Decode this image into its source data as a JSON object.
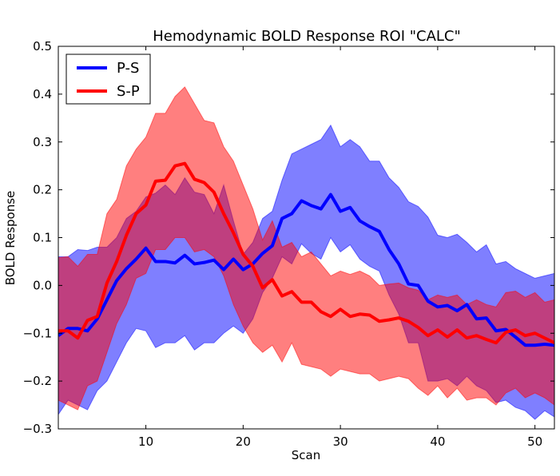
{
  "chart_data": {
    "type": "line",
    "title": "Hemodynamic BOLD Response ROI \"CALC\"",
    "xlabel": "Scan",
    "ylabel": "BOLD Response",
    "xlim": [
      1,
      52
    ],
    "ylim": [
      -0.3,
      0.5
    ],
    "xticks": [
      10,
      20,
      30,
      40,
      50
    ],
    "yticks": [
      -0.3,
      -0.2,
      -0.1,
      0.0,
      0.1,
      0.2,
      0.3,
      0.4,
      0.5
    ],
    "ytick_labels": [
      "−0.3",
      "−0.2",
      "−0.1",
      "0.0",
      "0.1",
      "0.2",
      "0.3",
      "0.4",
      "0.5"
    ],
    "grid": false,
    "legend_position": "top-left",
    "x": [
      1,
      2,
      3,
      4,
      5,
      6,
      7,
      8,
      9,
      10,
      11,
      12,
      13,
      14,
      15,
      16,
      17,
      18,
      19,
      20,
      21,
      22,
      23,
      24,
      25,
      26,
      27,
      28,
      29,
      30,
      31,
      32,
      33,
      34,
      35,
      36,
      37,
      38,
      39,
      40,
      41,
      42,
      43,
      44,
      45,
      46,
      47,
      48,
      49,
      50,
      51,
      52
    ],
    "series": [
      {
        "name": "P-S",
        "color": "#0000ff",
        "band_color": "#7f7fff",
        "mean": [
          -0.105,
          -0.09,
          -0.09,
          -0.095,
          -0.07,
          -0.03,
          0.01,
          0.035,
          0.055,
          0.078,
          0.05,
          0.05,
          0.047,
          0.063,
          0.045,
          0.048,
          0.053,
          0.033,
          0.055,
          0.033,
          0.045,
          0.067,
          0.083,
          0.14,
          0.15,
          0.177,
          0.167,
          0.16,
          0.19,
          0.155,
          0.163,
          0.135,
          0.123,
          0.113,
          0.075,
          0.045,
          0.003,
          0.0,
          -0.033,
          -0.045,
          -0.042,
          -0.053,
          -0.04,
          -0.07,
          -0.068,
          -0.095,
          -0.092,
          -0.108,
          -0.125,
          -0.125,
          -0.123,
          -0.125
        ],
        "upper": [
          0.06,
          0.06,
          0.075,
          0.073,
          0.08,
          0.08,
          0.1,
          0.14,
          0.155,
          0.185,
          0.193,
          0.21,
          0.19,
          0.225,
          0.195,
          0.19,
          0.15,
          0.21,
          0.135,
          0.065,
          0.09,
          0.14,
          0.155,
          0.22,
          0.275,
          0.285,
          0.295,
          0.305,
          0.335,
          0.29,
          0.305,
          0.29,
          0.26,
          0.26,
          0.225,
          0.205,
          0.175,
          0.165,
          0.143,
          0.105,
          0.1,
          0.107,
          0.09,
          0.07,
          0.085,
          0.045,
          0.05,
          0.035,
          0.025,
          0.015,
          0.02,
          0.025
        ],
        "lower": [
          -0.27,
          -0.24,
          -0.25,
          -0.26,
          -0.22,
          -0.2,
          -0.16,
          -0.12,
          -0.09,
          -0.095,
          -0.13,
          -0.12,
          -0.12,
          -0.105,
          -0.135,
          -0.12,
          -0.12,
          -0.1,
          -0.085,
          -0.1,
          -0.07,
          -0.015,
          0.015,
          0.06,
          0.045,
          0.087,
          0.067,
          0.055,
          0.1,
          0.07,
          0.085,
          0.055,
          0.04,
          0.03,
          -0.02,
          -0.06,
          -0.12,
          -0.12,
          -0.2,
          -0.2,
          -0.195,
          -0.21,
          -0.19,
          -0.21,
          -0.22,
          -0.245,
          -0.24,
          -0.255,
          -0.262,
          -0.28,
          -0.262,
          -0.275
        ]
      },
      {
        "name": "S-P",
        "color": "#ff0000",
        "band_color": "#ff7f7f",
        "mean": [
          -0.095,
          -0.095,
          -0.11,
          -0.073,
          -0.065,
          0.005,
          0.05,
          0.105,
          0.15,
          0.168,
          0.218,
          0.22,
          0.25,
          0.255,
          0.222,
          0.215,
          0.195,
          0.15,
          0.11,
          0.065,
          0.04,
          -0.005,
          0.012,
          -0.022,
          -0.013,
          -0.035,
          -0.035,
          -0.055,
          -0.065,
          -0.05,
          -0.065,
          -0.06,
          -0.062,
          -0.075,
          -0.072,
          -0.068,
          -0.075,
          -0.088,
          -0.105,
          -0.093,
          -0.108,
          -0.093,
          -0.11,
          -0.105,
          -0.113,
          -0.12,
          -0.098,
          -0.093,
          -0.105,
          -0.1,
          -0.11,
          -0.12
        ],
        "upper": [
          0.058,
          0.06,
          0.04,
          0.065,
          0.065,
          0.15,
          0.18,
          0.25,
          0.285,
          0.31,
          0.36,
          0.36,
          0.395,
          0.415,
          0.38,
          0.345,
          0.34,
          0.29,
          0.26,
          0.21,
          0.16,
          0.095,
          0.135,
          0.08,
          0.09,
          0.06,
          0.07,
          0.045,
          0.02,
          0.03,
          0.023,
          0.03,
          0.02,
          0.0,
          0.003,
          0.005,
          -0.005,
          -0.01,
          -0.03,
          -0.02,
          -0.025,
          -0.02,
          -0.04,
          -0.03,
          -0.04,
          -0.045,
          -0.015,
          -0.012,
          -0.025,
          -0.015,
          -0.035,
          -0.03
        ],
        "lower": [
          -0.24,
          -0.25,
          -0.26,
          -0.21,
          -0.2,
          -0.14,
          -0.08,
          -0.04,
          0.015,
          0.025,
          0.075,
          0.075,
          0.1,
          0.1,
          0.07,
          0.075,
          0.06,
          0.02,
          -0.04,
          -0.085,
          -0.12,
          -0.14,
          -0.125,
          -0.16,
          -0.12,
          -0.165,
          -0.17,
          -0.175,
          -0.19,
          -0.175,
          -0.18,
          -0.185,
          -0.185,
          -0.2,
          -0.195,
          -0.19,
          -0.195,
          -0.215,
          -0.23,
          -0.21,
          -0.235,
          -0.215,
          -0.24,
          -0.235,
          -0.235,
          -0.25,
          -0.225,
          -0.215,
          -0.235,
          -0.225,
          -0.235,
          -0.25
        ]
      }
    ]
  }
}
